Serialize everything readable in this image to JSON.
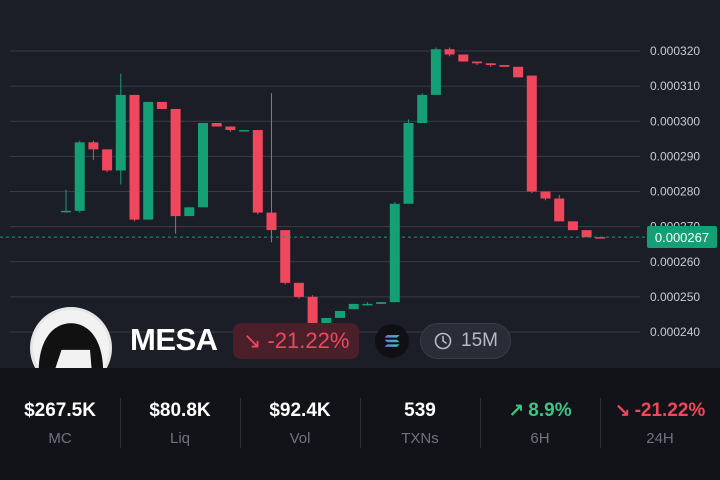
{
  "chart_data": {
    "type": "candlestick",
    "ylim": [
      0.000237,
      0.000323
    ],
    "y_ticks": [
      "0.000320",
      "0.000310",
      "0.000300",
      "0.000290",
      "0.000280",
      "0.000270",
      "0.000260",
      "0.000250",
      "0.000240"
    ],
    "current_price": "0.000267",
    "candles": [
      {
        "o": 0.0002745,
        "h": 0.0002805,
        "l": 0.000274,
        "c": 0.0002745
      },
      {
        "o": 0.0002745,
        "h": 0.0002945,
        "l": 0.000274,
        "c": 0.000294
      },
      {
        "o": 0.000294,
        "h": 0.0002945,
        "l": 0.000289,
        "c": 0.000292
      },
      {
        "o": 0.000292,
        "h": 0.000292,
        "l": 0.0002855,
        "c": 0.000286
      },
      {
        "o": 0.000286,
        "h": 0.0003135,
        "l": 0.000282,
        "c": 0.0003075
      },
      {
        "o": 0.0003075,
        "h": 0.0003075,
        "l": 0.0002715,
        "c": 0.000272
      },
      {
        "o": 0.000272,
        "h": 0.0003055,
        "l": 0.000272,
        "c": 0.0003055
      },
      {
        "o": 0.0003055,
        "h": 0.0003055,
        "l": 0.0003035,
        "c": 0.0003035
      },
      {
        "o": 0.0003035,
        "h": 0.0003035,
        "l": 0.000268,
        "c": 0.000273
      },
      {
        "o": 0.000273,
        "h": 0.0002755,
        "l": 0.000273,
        "c": 0.0002755
      },
      {
        "o": 0.0002755,
        "h": 0.0002995,
        "l": 0.0002755,
        "c": 0.0002995
      },
      {
        "o": 0.0002995,
        "h": 0.0002995,
        "l": 0.0002985,
        "c": 0.0002985
      },
      {
        "o": 0.0002985,
        "h": 0.0002985,
        "l": 0.000297,
        "c": 0.0002975
      },
      {
        "o": 0.0002975,
        "h": 0.0002975,
        "l": 0.0002975,
        "c": 0.0002975
      },
      {
        "o": 0.0002975,
        "h": 0.0002975,
        "l": 0.0002735,
        "c": 0.000274
      },
      {
        "o": 0.000274,
        "h": 0.000308,
        "l": 0.0002655,
        "c": 0.000269
      },
      {
        "o": 0.000269,
        "h": 0.000269,
        "l": 0.0002535,
        "c": 0.000254
      },
      {
        "o": 0.000254,
        "h": 0.000254,
        "l": 0.0002495,
        "c": 0.00025
      },
      {
        "o": 0.00025,
        "h": 0.0002505,
        "l": 0.00024,
        "c": 0.0002415
      },
      {
        "o": 0.000242,
        "h": 0.000244,
        "l": 0.000242,
        "c": 0.000244
      },
      {
        "o": 0.000244,
        "h": 0.000246,
        "l": 0.000244,
        "c": 0.000246
      },
      {
        "o": 0.0002465,
        "h": 0.000248,
        "l": 0.0002465,
        "c": 0.000248
      },
      {
        "o": 0.000248,
        "h": 0.0002485,
        "l": 0.0002475,
        "c": 0.000248
      },
      {
        "o": 0.000248,
        "h": 0.0002485,
        "l": 0.000248,
        "c": 0.0002485
      },
      {
        "o": 0.0002485,
        "h": 0.000277,
        "l": 0.0002485,
        "c": 0.0002765
      },
      {
        "o": 0.0002765,
        "h": 0.0003005,
        "l": 0.0002765,
        "c": 0.0002995
      },
      {
        "o": 0.0002995,
        "h": 0.000308,
        "l": 0.0002995,
        "c": 0.0003075
      },
      {
        "o": 0.0003075,
        "h": 0.000321,
        "l": 0.0003075,
        "c": 0.0003205
      },
      {
        "o": 0.0003205,
        "h": 0.000321,
        "l": 0.0003185,
        "c": 0.000319
      },
      {
        "o": 0.000319,
        "h": 0.000319,
        "l": 0.000317,
        "c": 0.000317
      },
      {
        "o": 0.000317,
        "h": 0.000317,
        "l": 0.000316,
        "c": 0.0003165
      },
      {
        "o": 0.0003165,
        "h": 0.0003165,
        "l": 0.0003155,
        "c": 0.000316
      },
      {
        "o": 0.000316,
        "h": 0.000316,
        "l": 0.0003155,
        "c": 0.0003155
      },
      {
        "o": 0.0003155,
        "h": 0.0003155,
        "l": 0.0003125,
        "c": 0.0003125
      },
      {
        "o": 0.000313,
        "h": 0.000313,
        "l": 0.0002795,
        "c": 0.00028
      },
      {
        "o": 0.00028,
        "h": 0.00028,
        "l": 0.0002775,
        "c": 0.000278
      },
      {
        "o": 0.000278,
        "h": 0.000279,
        "l": 0.0002715,
        "c": 0.0002715
      },
      {
        "o": 0.0002715,
        "h": 0.0002715,
        "l": 0.000269,
        "c": 0.000269
      },
      {
        "o": 0.000269,
        "h": 0.000269,
        "l": 0.000267,
        "c": 0.000267
      },
      {
        "o": 0.000267,
        "h": 0.000267,
        "l": 0.0002668,
        "c": 0.0002668
      }
    ]
  },
  "token": {
    "name": "MESA",
    "change_arrow": "↘",
    "change": "-21.22%",
    "chain_icon": "solana-icon",
    "timeframe": "15M"
  },
  "stats": [
    {
      "value": "$267.5K",
      "label": "MC"
    },
    {
      "value": "$80.8K",
      "label": "Liq"
    },
    {
      "value": "$92.4K",
      "label": "Vol"
    },
    {
      "value": "539",
      "label": "TXNs"
    },
    {
      "arrow": "↗",
      "value": "8.9%",
      "label": "6H"
    },
    {
      "arrow": "↘",
      "value": "-21.22%",
      "label": "24H"
    }
  ],
  "colors": {
    "background": "#1b1d27",
    "up": "#149f74",
    "down": "#f0475c",
    "grid": "#3a3c46"
  }
}
